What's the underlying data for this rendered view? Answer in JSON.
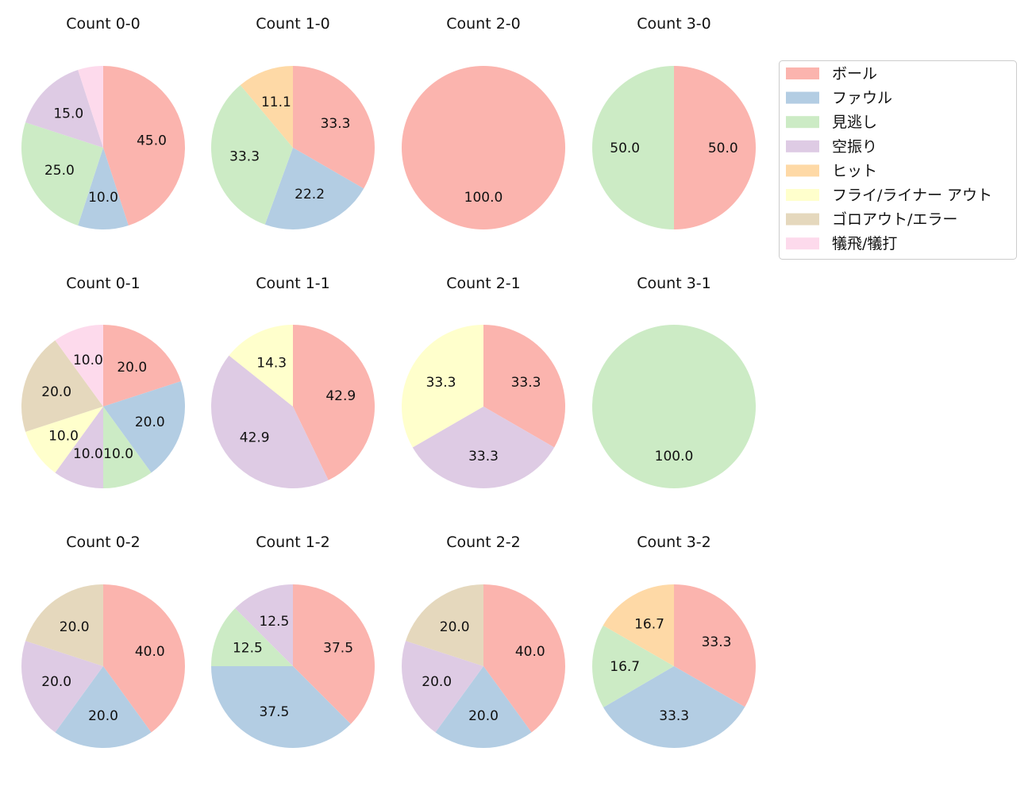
{
  "categories": [
    "ボール",
    "ファウル",
    "見逃し",
    "空振り",
    "ヒット",
    "フライ/ライナー アウト",
    "ゴロアウト/エラー",
    "犠飛/犠打"
  ],
  "colors": [
    "#fbb4ae",
    "#b3cde3",
    "#ccebc5",
    "#decbe4",
    "#fed9a6",
    "#ffffcc",
    "#e5d8bd",
    "#fddaec"
  ],
  "chart_data": [
    {
      "type": "pie",
      "title": "Count 0-0",
      "values": [
        45.0,
        10.0,
        25.0,
        15.0,
        0,
        0,
        0,
        5.0
      ],
      "labels": [
        "45.0",
        "10.0",
        "25.0",
        "15.0",
        "",
        "",
        "",
        ""
      ]
    },
    {
      "type": "pie",
      "title": "Count 1-0",
      "values": [
        33.3,
        22.2,
        33.3,
        0,
        11.1,
        0,
        0,
        0
      ],
      "labels": [
        "33.3",
        "22.2",
        "33.3",
        "",
        "11.1",
        "",
        "",
        ""
      ]
    },
    {
      "type": "pie",
      "title": "Count 2-0",
      "values": [
        100.0,
        0,
        0,
        0,
        0,
        0,
        0,
        0
      ],
      "labels": [
        "100.0",
        "",
        "",
        "",
        "",
        "",
        "",
        ""
      ]
    },
    {
      "type": "pie",
      "title": "Count 3-0",
      "values": [
        50.0,
        0,
        50.0,
        0,
        0,
        0,
        0,
        0
      ],
      "labels": [
        "50.0",
        "",
        "50.0",
        "",
        "",
        "",
        "",
        ""
      ]
    },
    {
      "type": "pie",
      "title": "Count 0-1",
      "values": [
        20.0,
        20.0,
        10.0,
        10.0,
        0,
        10.0,
        20.0,
        10.0
      ],
      "labels": [
        "20.0",
        "20.0",
        "10.0",
        "10.0",
        "",
        "10.0",
        "20.0",
        "10.0"
      ]
    },
    {
      "type": "pie",
      "title": "Count 1-1",
      "values": [
        42.9,
        0,
        0,
        42.9,
        0,
        14.3,
        0,
        0
      ],
      "labels": [
        "42.9",
        "",
        "",
        "42.9",
        "",
        "14.3",
        "",
        ""
      ]
    },
    {
      "type": "pie",
      "title": "Count 2-1",
      "values": [
        33.3,
        0,
        0,
        33.3,
        0,
        33.3,
        0,
        0
      ],
      "labels": [
        "33.3",
        "",
        "",
        "33.3",
        "",
        "33.3",
        "",
        ""
      ]
    },
    {
      "type": "pie",
      "title": "Count 3-1",
      "values": [
        0,
        0,
        100.0,
        0,
        0,
        0,
        0,
        0
      ],
      "labels": [
        "",
        "",
        "100.0",
        "",
        "",
        "",
        "",
        ""
      ]
    },
    {
      "type": "pie",
      "title": "Count 0-2",
      "values": [
        40.0,
        20.0,
        0,
        20.0,
        0,
        0,
        20.0,
        0
      ],
      "labels": [
        "40.0",
        "20.0",
        "",
        "20.0",
        "",
        "",
        "20.0",
        ""
      ]
    },
    {
      "type": "pie",
      "title": "Count 1-2",
      "values": [
        37.5,
        37.5,
        12.5,
        12.5,
        0,
        0,
        0,
        0
      ],
      "labels": [
        "37.5",
        "37.5",
        "12.5",
        "12.5",
        "",
        "",
        "",
        ""
      ]
    },
    {
      "type": "pie",
      "title": "Count 2-2",
      "values": [
        40.0,
        20.0,
        0,
        20.0,
        0,
        0,
        20.0,
        0
      ],
      "labels": [
        "40.0",
        "20.0",
        "",
        "20.0",
        "",
        "",
        "20.0",
        ""
      ]
    },
    {
      "type": "pie",
      "title": "Count 3-2",
      "values": [
        33.3,
        33.3,
        16.7,
        0,
        16.7,
        0,
        0,
        0
      ],
      "labels": [
        "33.3",
        "33.3",
        "16.7",
        "",
        "16.7",
        "",
        "",
        ""
      ]
    }
  ]
}
